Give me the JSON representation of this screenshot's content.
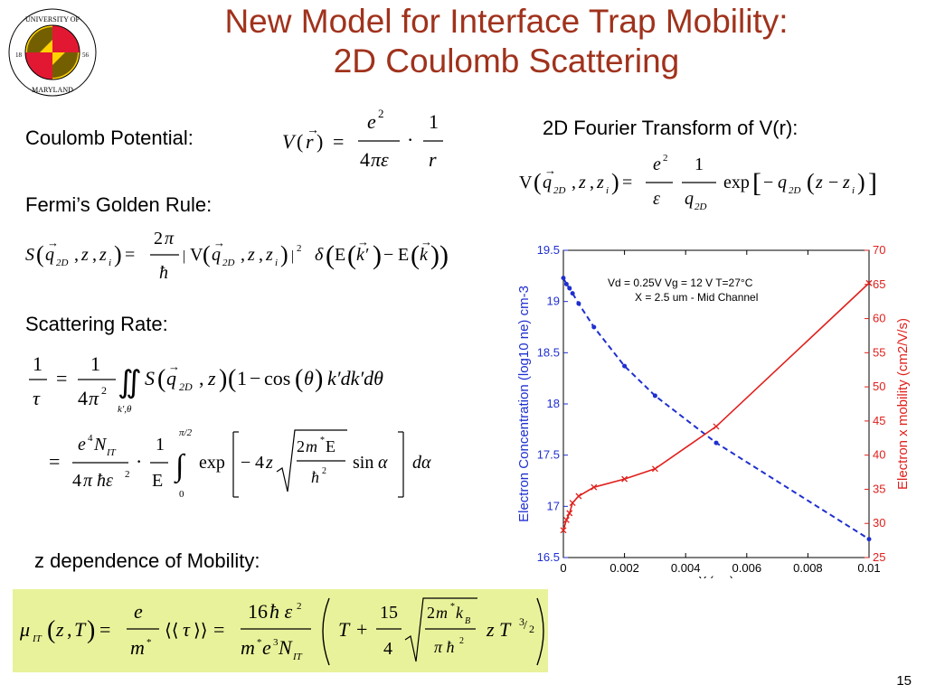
{
  "slide": {
    "title_line1": "New Model for Interface Trap Mobility:",
    "title_line2": "2D Coulomb Scattering",
    "page_number": "15",
    "logo": {
      "text_top": "UNIVERSITY OF",
      "text_bottom": "MARYLAND",
      "year_left": "18",
      "year_right": "56"
    },
    "labels": {
      "coulomb": "Coulomb Potential:",
      "fourier": "2D Fourier Transform of V(r):",
      "fermi": "Fermi’s Golden Rule:",
      "scattering": "Scattering Rate:",
      "zdep": "z dependence of Mobility:"
    }
  },
  "chart_data": {
    "type": "line",
    "annotation_line1": "Vd = 0.25V   Vg = 12 V   T=27°C",
    "annotation_line2": "X = 2.5 um - Mid Channel",
    "xlabel": "Y (um)",
    "ylabel_left": "Electron Concentration (log10 ne) cm-3",
    "ylabel_right": "Electron x mobility (cm2/V/s)",
    "xlim": [
      0,
      0.01
    ],
    "ylim_left": [
      16.5,
      19.5
    ],
    "ylim_right": [
      25,
      70
    ],
    "x_ticks": [
      "0",
      "0.002",
      "0.004",
      "0.006",
      "0.008",
      "0.01"
    ],
    "y_left_ticks": [
      "16.5",
      "17",
      "17.5",
      "18",
      "18.5",
      "19",
      "19.5"
    ],
    "y_right_ticks": [
      "25",
      "30",
      "35",
      "40",
      "45",
      "50",
      "55",
      "60",
      "65",
      "70"
    ],
    "series": [
      {
        "color": "#1f2fd0",
        "axis": "left",
        "style": "dashed",
        "marker": "dot",
        "x": [
          0,
          0.0001,
          0.0002,
          0.0003,
          0.0005,
          0.001,
          0.002,
          0.003,
          0.005,
          0.01
        ],
        "y": [
          19.23,
          19.17,
          19.13,
          19.08,
          18.98,
          18.75,
          18.37,
          18.08,
          17.62,
          16.68
        ]
      },
      {
        "color": "#e0201c",
        "axis": "right",
        "style": "solid",
        "marker": "x",
        "x": [
          0,
          0.0001,
          0.0002,
          0.0003,
          0.0005,
          0.001,
          0.002,
          0.003,
          0.005,
          0.01
        ],
        "y": [
          29.0,
          30.5,
          31.5,
          33.0,
          34.0,
          35.3,
          36.5,
          38.0,
          44.2,
          65.2
        ]
      }
    ]
  }
}
